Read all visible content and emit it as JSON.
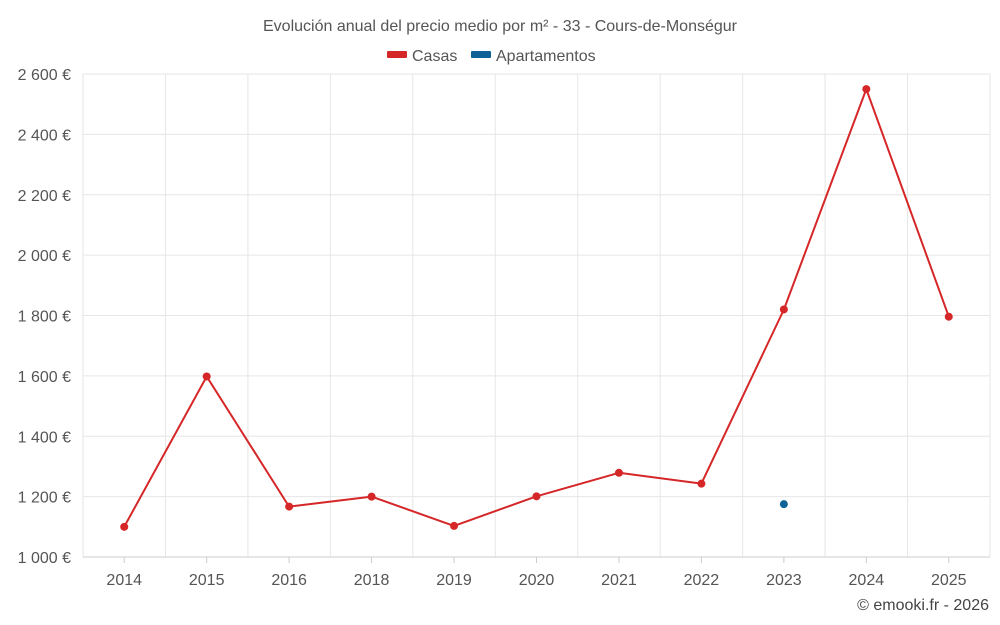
{
  "chart_data": {
    "type": "line",
    "title": "Evolución anual del precio medio por m² - 33 - Cours-de-Monségur",
    "categories": [
      "2014",
      "2015",
      "2016",
      "2018",
      "2019",
      "2020",
      "2021",
      "2022",
      "2023",
      "2024",
      "2025"
    ],
    "series": [
      {
        "name": "Casas",
        "color": "#d62728",
        "values": [
          1100,
          1598,
          1167,
          1200,
          1103,
          1201,
          1279,
          1243,
          1820,
          2550,
          1796
        ]
      },
      {
        "name": "Apartamentos",
        "color": "#0f6296",
        "values": [
          null,
          null,
          null,
          null,
          null,
          null,
          null,
          null,
          1175,
          null,
          null
        ]
      }
    ],
    "ylim": [
      1000,
      2600
    ],
    "yticks": [
      1000,
      1200,
      1400,
      1600,
      1800,
      2000,
      2200,
      2400,
      2600
    ],
    "ytick_labels": [
      "1 000 €",
      "1 200 €",
      "1 400 €",
      "1 600 €",
      "1 800 €",
      "2 000 €",
      "2 200 €",
      "2 400 €",
      "2 600 €"
    ],
    "xlabel": "",
    "ylabel": "",
    "grid": true,
    "legend_position": "top-center"
  },
  "credit": "© emooki.fr - 2026"
}
